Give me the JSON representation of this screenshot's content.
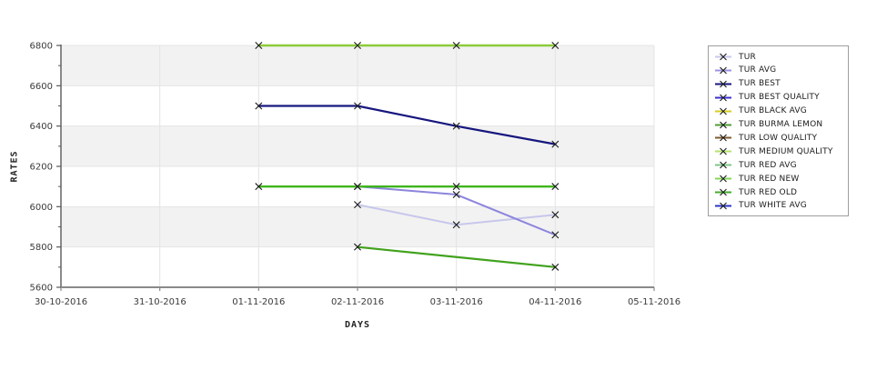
{
  "figure": {
    "background": "#ffffff",
    "band_color": "#f2f2f2",
    "grid_color": "#e4e4e4",
    "axis_color": "#8a8a8a",
    "left_axis_color": "#5a5a5a",
    "tick_text_color": "#3a3a3a",
    "marker_color": "#1a1a1a"
  },
  "chart_data": {
    "type": "line",
    "title": "",
    "xlabel": "DAYS",
    "ylabel": "RATES",
    "x_tick_labels": [
      "30-10-2016",
      "31-10-2016",
      "01-11-2016",
      "02-11-2016",
      "03-11-2016",
      "04-11-2016",
      "05-11-2016"
    ],
    "y_ticks": [
      5600,
      5800,
      6000,
      6200,
      6400,
      6600,
      6800
    ],
    "y_minor_ticks": [
      5700,
      5900,
      6100,
      6300,
      6500,
      6700
    ],
    "ylim": [
      5600,
      6800
    ],
    "grid": true,
    "legend_position": "right",
    "marker": "x",
    "series": [
      {
        "name": "TUR",
        "color": "#c7c7ec",
        "width": 2,
        "points": [
          {
            "x": "02-11-2016",
            "y": 6010
          },
          {
            "x": "03-11-2016",
            "y": 5910
          },
          {
            "x": "04-11-2016",
            "y": 5960
          }
        ]
      },
      {
        "name": "TUR AVG",
        "color": "#8d85dd",
        "width": 2,
        "points": [
          {
            "x": "02-11-2016",
            "y": 6100
          },
          {
            "x": "03-11-2016",
            "y": 6060
          },
          {
            "x": "04-11-2016",
            "y": 5860
          }
        ]
      },
      {
        "name": "TUR BEST",
        "color": "#17177f",
        "width": 2.2,
        "points": [
          {
            "x": "01-11-2016",
            "y": 6500
          },
          {
            "x": "02-11-2016",
            "y": 6500
          },
          {
            "x": "03-11-2016",
            "y": 6400
          },
          {
            "x": "04-11-2016",
            "y": 6310
          }
        ]
      },
      {
        "name": "TUR BURMA LEMON",
        "color": "#41a21d",
        "width": 2.2,
        "points": [
          {
            "x": "02-11-2016",
            "y": 5800
          },
          {
            "x": "04-11-2016",
            "y": 5700
          }
        ]
      },
      {
        "name": "TUR RED OLD",
        "color": "#3eb51c",
        "width": 2.4,
        "points": [
          {
            "x": "01-11-2016",
            "y": 6100
          },
          {
            "x": "02-11-2016",
            "y": 6100
          },
          {
            "x": "03-11-2016",
            "y": 6100
          },
          {
            "x": "04-11-2016",
            "y": 6100
          }
        ]
      },
      {
        "name": "TUR MEDIUM QUALITY",
        "color": "#8ccb39",
        "width": 2.5,
        "points": [
          {
            "x": "01-11-2016",
            "y": 6800
          },
          {
            "x": "02-11-2016",
            "y": 6800
          },
          {
            "x": "03-11-2016",
            "y": 6800
          },
          {
            "x": "04-11-2016",
            "y": 6800
          }
        ]
      }
    ]
  },
  "legend": {
    "items": [
      {
        "label": "TUR",
        "color": "#c7c7ec"
      },
      {
        "label": "TUR AVG",
        "color": "#9b93e3"
      },
      {
        "label": "TUR BEST",
        "color": "#17177f"
      },
      {
        "label": "TUR BEST QUALITY",
        "color": "#3d2fd1"
      },
      {
        "label": "TUR BLACK AVG",
        "color": "#d8ce22"
      },
      {
        "label": "TUR BURMA LEMON",
        "color": "#4f9e38"
      },
      {
        "label": "TUR LOW QUALITY",
        "color": "#7d5a2d"
      },
      {
        "label": "TUR MEDIUM QUALITY",
        "color": "#b5e36c"
      },
      {
        "label": "TUR RED AVG",
        "color": "#7ec788"
      },
      {
        "label": "TUR RED NEW",
        "color": "#86d758"
      },
      {
        "label": "TUR RED OLD",
        "color": "#46ad2b"
      },
      {
        "label": "TUR WHITE AVG",
        "color": "#2a35c4"
      }
    ]
  }
}
